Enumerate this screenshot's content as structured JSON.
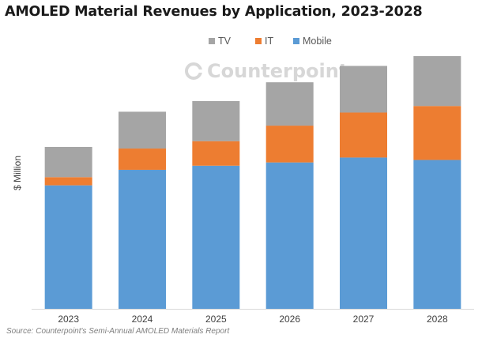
{
  "colors": {
    "tv": "#a5a5a5",
    "it": "#ed7d31",
    "mobile": "#5b9bd5"
  },
  "watermark": {
    "text": "Counterpoint"
  },
  "source_text": "Source: Counterpoint's Semi-Annual AMOLED Materials Report",
  "chart_data": {
    "type": "bar",
    "stacked": true,
    "title": "AMOLED Material Revenues by Application, 2023-2028",
    "xlabel": "",
    "ylabel": "$ Million",
    "categories": [
      "2023",
      "2024",
      "2025",
      "2026",
      "2027",
      "2028"
    ],
    "series": [
      {
        "name": "Mobile",
        "values": [
          151,
          170,
          175,
          179,
          185,
          182
        ]
      },
      {
        "name": "IT",
        "values": [
          10,
          26,
          30,
          45,
          55,
          66
        ]
      },
      {
        "name": "TV",
        "values": [
          37,
          45,
          49,
          53,
          57,
          61
        ]
      }
    ],
    "legend": [
      "TV",
      "IT",
      "Mobile"
    ],
    "legend_position": "top",
    "ylim": [
      0,
      310
    ],
    "grid": false,
    "y_ticks_shown": false
  }
}
